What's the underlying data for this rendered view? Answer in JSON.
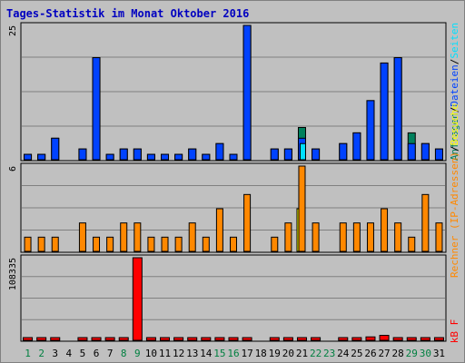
{
  "title": "Tages-Statistik im Monat Oktober 2016",
  "colors": {
    "background": "#c0c0c0",
    "grid": "#808080",
    "anfragen": "#00805c",
    "dateien": "#0042ff",
    "seiten": "#00e0ff",
    "besuche": "#ffff00",
    "rechner": "#ff8800",
    "kbf": "#ff0000",
    "day_weekday": "#000000",
    "day_weekend": "#008040"
  },
  "chart_data": [
    {
      "type": "bar",
      "panel": "top",
      "max_label": "25",
      "ylim": [
        0,
        25
      ],
      "grid": true,
      "legend": [
        {
          "name": "Anfragen",
          "color": "#00805c"
        },
        {
          "name": "Dateien",
          "color": "#0042ff"
        },
        {
          "name": "Seiten",
          "color": "#00e0ff"
        }
      ],
      "legend_separator": "/",
      "categories": [
        "1",
        "2",
        "3",
        "4",
        "5",
        "6",
        "7",
        "8",
        "9",
        "10",
        "11",
        "12",
        "13",
        "14",
        "15",
        "16",
        "17",
        "18",
        "19",
        "20",
        "21",
        "22",
        "23",
        "24",
        "25",
        "26",
        "27",
        "28",
        "29",
        "30",
        "31"
      ],
      "series": [
        {
          "name": "Anfragen",
          "values": [
            1,
            1,
            4,
            0,
            2,
            19,
            1,
            2,
            2,
            1,
            1,
            1,
            2,
            1,
            3,
            1,
            25,
            0,
            2,
            2,
            6,
            2,
            0,
            3,
            5,
            11,
            18,
            19,
            5,
            3,
            2
          ]
        },
        {
          "name": "Dateien",
          "values": [
            1,
            1,
            4,
            0,
            2,
            19,
            1,
            2,
            2,
            1,
            1,
            1,
            2,
            1,
            3,
            1,
            25,
            0,
            2,
            2,
            4,
            2,
            0,
            3,
            5,
            11,
            18,
            19,
            3,
            3,
            2
          ]
        },
        {
          "name": "Seiten",
          "values": [
            0,
            0,
            0,
            0,
            0,
            0,
            0,
            0,
            0,
            0,
            0,
            0,
            0,
            0,
            0,
            0,
            0,
            0,
            0,
            0,
            3,
            0,
            0,
            0,
            0,
            0,
            0,
            0,
            0,
            0,
            0
          ]
        }
      ]
    },
    {
      "type": "bar",
      "panel": "middle",
      "max_label": "6",
      "ylim": [
        0,
        6
      ],
      "grid": true,
      "legend": [
        {
          "name": "Rechner (IP-Adressen)",
          "color": "#ff8800"
        },
        {
          "name": "Besuche",
          "color": "#ffff00"
        }
      ],
      "legend_separator": "/",
      "series": [
        {
          "name": "Rechner (IP-Adressen)",
          "values": [
            1,
            1,
            1,
            0,
            2,
            1,
            1,
            2,
            2,
            1,
            1,
            1,
            2,
            1,
            3,
            1,
            4,
            0,
            1,
            2,
            6,
            2,
            0,
            2,
            2,
            2,
            3,
            2,
            1,
            4,
            2
          ]
        },
        {
          "name": "Besuche",
          "values": [
            0,
            0,
            0,
            0,
            0,
            0,
            0,
            0,
            0,
            0,
            0,
            0,
            0,
            0,
            0,
            0,
            0,
            0,
            0,
            0,
            3,
            0,
            0,
            0,
            0,
            0,
            0,
            0,
            0,
            0,
            0
          ]
        }
      ]
    },
    {
      "type": "bar",
      "panel": "bottom",
      "max_label": "108335",
      "ylim": [
        0,
        108335
      ],
      "grid": true,
      "legend": [
        {
          "name": "kB F",
          "color": "#ff0000"
        }
      ],
      "series": [
        {
          "name": "kB F",
          "values": [
            1000,
            1000,
            1000,
            0,
            1000,
            1000,
            1000,
            1000,
            108335,
            1000,
            1000,
            1000,
            1000,
            1000,
            1000,
            1000,
            1000,
            0,
            1000,
            1000,
            1000,
            1000,
            0,
            1000,
            1000,
            4500,
            6500,
            1000,
            1000,
            1000,
            1000
          ]
        }
      ]
    }
  ],
  "weekend_days": [
    1,
    2,
    8,
    9,
    15,
    16,
    22,
    23,
    29,
    30
  ]
}
